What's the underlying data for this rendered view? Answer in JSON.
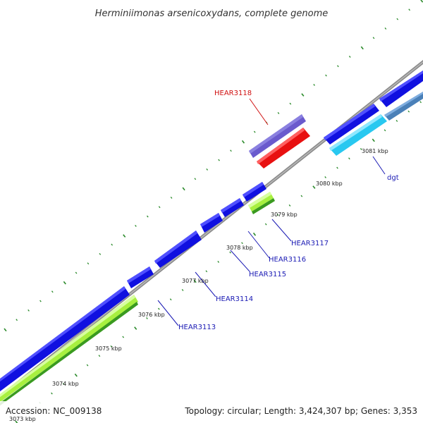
{
  "title": "Herminiimonas arsenicoxydans, complete genome",
  "footer": {
    "accession": "Accession: NC_009138",
    "summary": "Topology: circular; Length: 3,424,307 bp; Genes: 3,353"
  },
  "colors": {
    "backbone": "#8c8c8c",
    "gene_blue": "#1010e0",
    "gene_slate": "#6a5acd",
    "gene_red": "#e81010",
    "gene_cyan": "#28c8f0",
    "gene_steel": "#4a80b8",
    "gene_lime": "#a8f040",
    "gene_green": "#3a9a20",
    "tick": "#2a8a2a",
    "label_blue": "#1a1ab4",
    "label_red": "#d01010"
  },
  "kbp_labels": [
    "3073 kbp",
    "3074 kbp",
    "3075 kbp",
    "3076 kbp",
    "3077 kbp",
    "3078 kbp",
    "3079 kbp",
    "3080 kbp",
    "3081 kbp"
  ],
  "gene_labels": [
    {
      "text": "HEAR3118",
      "color": "red"
    },
    {
      "text": "dgt",
      "color": "blue"
    },
    {
      "text": "HEAR3117",
      "color": "blue"
    },
    {
      "text": "HEAR3116",
      "color": "blue"
    },
    {
      "text": "HEAR3115",
      "color": "blue"
    },
    {
      "text": "HEAR3114",
      "color": "blue"
    },
    {
      "text": "HEAR3113",
      "color": "blue"
    }
  ]
}
